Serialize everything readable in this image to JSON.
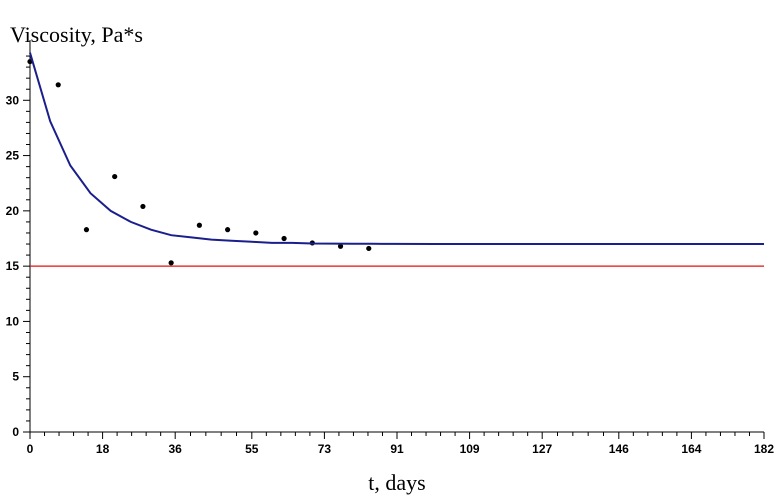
{
  "chart_data": {
    "type": "scatter",
    "title": "",
    "xlabel": "t, days",
    "ylabel": "Viscosity, Pa*s",
    "xlim": [
      0,
      182
    ],
    "ylim": [
      0,
      35
    ],
    "grid": false,
    "x_ticks": [
      0,
      18,
      36,
      55,
      73,
      91,
      109,
      127,
      146,
      164,
      182
    ],
    "y_ticks": [
      0,
      5,
      10,
      15,
      20,
      25,
      30
    ],
    "series": [
      {
        "type": "scatter",
        "color": "#000000",
        "x": [
          0,
          7,
          14,
          21,
          28,
          35,
          42,
          49,
          56,
          63,
          70,
          77,
          84
        ],
        "y": [
          33.5,
          31.4,
          18.3,
          23.1,
          20.4,
          15.3,
          18.7,
          18.3,
          18.0,
          17.5,
          17.1,
          16.8,
          16.6
        ]
      },
      {
        "type": "line",
        "color": "#1a1f8c",
        "x": [
          0,
          5,
          10,
          15,
          20,
          25,
          30,
          35,
          40,
          45,
          50,
          55,
          60,
          65,
          70,
          75,
          80,
          85,
          90,
          100,
          110,
          120,
          130,
          140,
          150,
          160,
          170,
          182
        ],
        "y": [
          34.3,
          28.1,
          24.1,
          21.6,
          20.0,
          19.0,
          18.3,
          17.8,
          17.6,
          17.4,
          17.3,
          17.2,
          17.1,
          17.1,
          17.05,
          17.04,
          17.03,
          17.02,
          17.01,
          17.0,
          17.0,
          17.0,
          17.0,
          17.0,
          17.0,
          17.0,
          17.0,
          17.0
        ]
      },
      {
        "type": "line",
        "color": "#e01010",
        "x": [
          0,
          182
        ],
        "y": [
          15,
          15
        ]
      }
    ]
  }
}
